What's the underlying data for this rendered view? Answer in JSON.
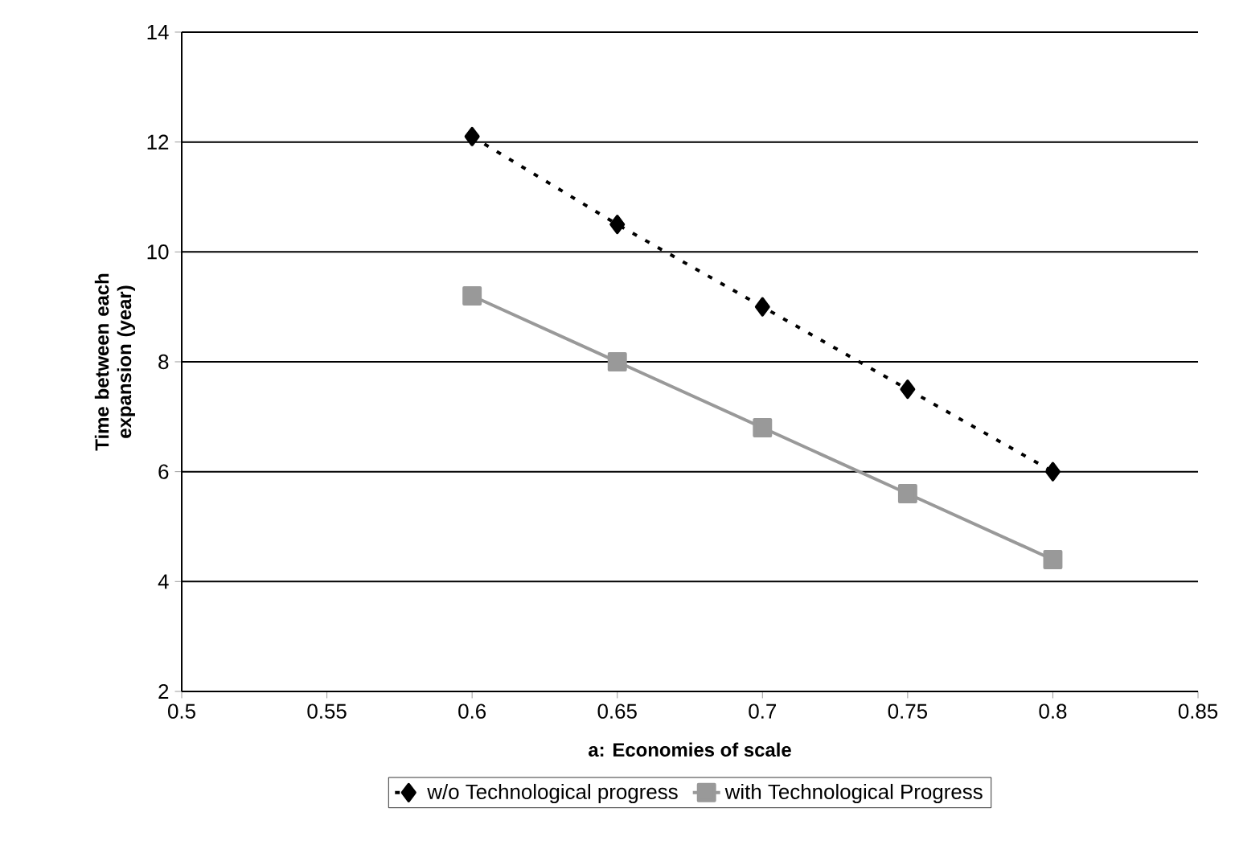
{
  "chart_data": {
    "type": "line",
    "xlabel": "a: Economies of scale",
    "ylabel": "Time between each expansion (year)",
    "x": [
      0.6,
      0.65,
      0.7,
      0.75,
      0.8
    ],
    "series": [
      {
        "name": "w/o Technological progress",
        "color": "#000000",
        "values": [
          12.1,
          10.5,
          9.0,
          7.5,
          6.0
        ],
        "marker": "diamond",
        "line_style": "dotted"
      },
      {
        "name": "with Technological Progress",
        "color": "#999999",
        "values": [
          9.2,
          8.0,
          6.8,
          5.6,
          4.4
        ],
        "marker": "square",
        "line_style": "solid"
      }
    ],
    "xlim": [
      0.5,
      0.85
    ],
    "xticks": [
      0.5,
      0.55,
      0.6,
      0.65,
      0.7,
      0.75,
      0.8,
      0.85
    ],
    "ylim": [
      2,
      14
    ],
    "yticks": [
      2,
      4,
      6,
      8,
      10,
      12,
      14
    ],
    "grid": "y",
    "legend": "bottom"
  }
}
